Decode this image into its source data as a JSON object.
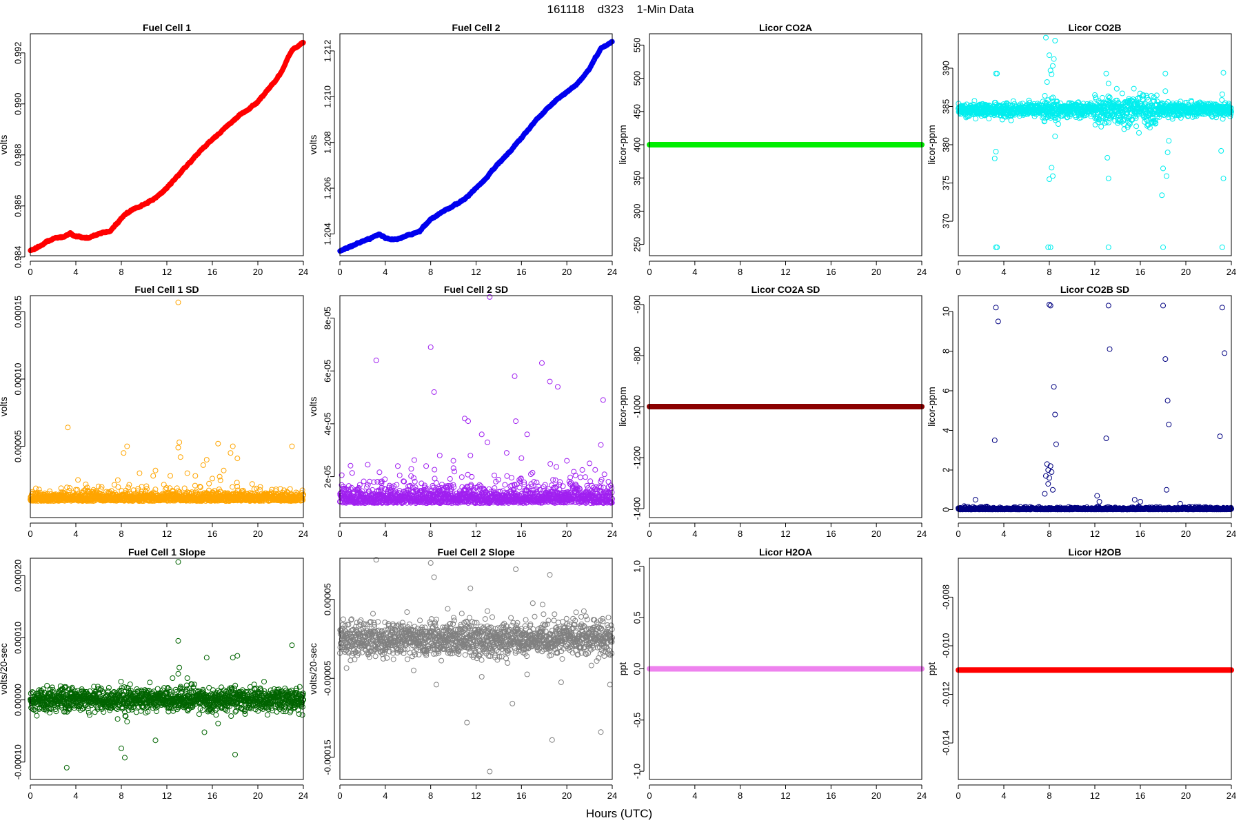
{
  "figure": {
    "title": "161118    d323    1-Min Data",
    "xlabel": "Hours (UTC)"
  },
  "chart_data": [
    {
      "id": "fc1",
      "type": "scatter",
      "title": "Fuel Cell 1",
      "ylabel": "volts",
      "color": "#ff0000",
      "xlim": [
        0,
        24
      ],
      "ylim": [
        0.98405,
        0.99275
      ],
      "xticks": [
        0,
        4,
        8,
        12,
        16,
        20,
        24
      ],
      "yticks": [
        0.984,
        0.986,
        0.988,
        0.99,
        0.992
      ],
      "ytick_labels": [
        "0.984",
        "0.986",
        "0.988",
        "0.990",
        "0.992"
      ],
      "trend": [
        [
          0,
          0.98425
        ],
        [
          1,
          0.98445
        ],
        [
          2,
          0.9847
        ],
        [
          3,
          0.9848
        ],
        [
          3.5,
          0.98495
        ],
        [
          4,
          0.9848
        ],
        [
          5,
          0.98475
        ],
        [
          6,
          0.9849
        ],
        [
          7,
          0.985
        ],
        [
          8,
          0.9855
        ],
        [
          8.5,
          0.98575
        ],
        [
          9,
          0.98585
        ],
        [
          10,
          0.98605
        ],
        [
          11,
          0.9863
        ],
        [
          12,
          0.9867
        ],
        [
          13,
          0.9872
        ],
        [
          14,
          0.9877
        ],
        [
          15,
          0.9882
        ],
        [
          16,
          0.9886
        ],
        [
          17,
          0.989
        ],
        [
          18,
          0.9894
        ],
        [
          19,
          0.98975
        ],
        [
          20,
          0.9901
        ],
        [
          21,
          0.9906
        ],
        [
          22,
          0.9912
        ],
        [
          23,
          0.9921
        ],
        [
          24,
          0.9924
        ]
      ],
      "noise": 1.5e-05,
      "marker_size": 3.2
    },
    {
      "id": "fc2",
      "type": "scatter",
      "title": "Fuel Cell 2",
      "ylabel": "volts",
      "color": "#0000ee",
      "xlim": [
        0,
        24
      ],
      "ylim": [
        1.20305,
        1.21275
      ],
      "xticks": [
        0,
        4,
        8,
        12,
        16,
        20,
        24
      ],
      "yticks": [
        1.204,
        1.206,
        1.208,
        1.21,
        1.212
      ],
      "ytick_labels": [
        "1.204",
        "1.206",
        "1.208",
        "1.210",
        "1.212"
      ],
      "trend": [
        [
          0,
          1.20325
        ],
        [
          1,
          1.20345
        ],
        [
          2,
          1.2037
        ],
        [
          3,
          1.20385
        ],
        [
          3.5,
          1.204
        ],
        [
          4,
          1.20385
        ],
        [
          5,
          1.20375
        ],
        [
          6,
          1.20395
        ],
        [
          7,
          1.2041
        ],
        [
          8,
          1.20465
        ],
        [
          9,
          1.20495
        ],
        [
          10,
          1.20525
        ],
        [
          11,
          1.2055
        ],
        [
          12,
          1.206
        ],
        [
          13,
          1.2065
        ],
        [
          14,
          1.2071
        ],
        [
          15,
          1.2076
        ],
        [
          16,
          1.2082
        ],
        [
          17,
          1.2088
        ],
        [
          18,
          1.20935
        ],
        [
          19,
          1.2098
        ],
        [
          20,
          1.2102
        ],
        [
          21,
          1.2106
        ],
        [
          22,
          1.21125
        ],
        [
          23,
          1.2121
        ],
        [
          24,
          1.2124
        ]
      ],
      "noise": 1.5e-05,
      "marker_size": 3.2
    },
    {
      "id": "co2a",
      "type": "scatter",
      "title": "Licor CO2A",
      "ylabel": "licor-ppm",
      "color": "#00ee00",
      "xlim": [
        0,
        24
      ],
      "ylim": [
        233,
        567
      ],
      "xticks": [
        0,
        4,
        8,
        12,
        16,
        20,
        24
      ],
      "yticks": [
        250,
        300,
        350,
        400,
        450,
        500,
        550
      ],
      "ytick_labels": [
        "250",
        "300",
        "350",
        "400",
        "450",
        "500",
        "550"
      ],
      "constant": 400,
      "marker_size": 3.2
    },
    {
      "id": "co2b",
      "type": "scatter",
      "title": "Licor CO2B",
      "ylabel": "licor-ppm",
      "color": "#00eeee",
      "xlim": [
        0,
        24
      ],
      "ylim": [
        365.5,
        394.5
      ],
      "xticks": [
        0,
        4,
        8,
        12,
        16,
        20,
        24
      ],
      "yticks": [
        370,
        375,
        380,
        385,
        390
      ],
      "ytick_labels": [
        "370",
        "375",
        "380",
        "385",
        "390"
      ],
      "baseline": 384.6,
      "noise": 0.45,
      "marker_size": 3.5,
      "outliers": [
        [
          3.3,
          366.6
        ],
        [
          3.4,
          366.6
        ],
        [
          3.3,
          389.3
        ],
        [
          3.4,
          389.3
        ],
        [
          3.3,
          379.1
        ],
        [
          3.2,
          378.2
        ],
        [
          7.9,
          366.6
        ],
        [
          8.1,
          366.6
        ],
        [
          7.7,
          394.0
        ],
        [
          8.0,
          391.7
        ],
        [
          8.3,
          390.3
        ],
        [
          8.2,
          389.2
        ],
        [
          7.8,
          388.2
        ],
        [
          8.5,
          393.6
        ],
        [
          8.4,
          391.2
        ],
        [
          8.1,
          389.7
        ],
        [
          8.2,
          377.0
        ],
        [
          8.3,
          375.9
        ],
        [
          8.0,
          375.5
        ],
        [
          8.5,
          381.1
        ],
        [
          13.2,
          366.6
        ],
        [
          13.0,
          389.3
        ],
        [
          13.2,
          388.0
        ],
        [
          13.1,
          378.3
        ],
        [
          13.2,
          375.6
        ],
        [
          18.0,
          366.6
        ],
        [
          18.2,
          389.3
        ],
        [
          18.2,
          387.0
        ],
        [
          18.0,
          376.9
        ],
        [
          18.3,
          375.9
        ],
        [
          17.9,
          373.4
        ],
        [
          18.5,
          380.5
        ],
        [
          18.4,
          379.0
        ],
        [
          23.2,
          366.6
        ],
        [
          23.3,
          389.4
        ],
        [
          23.1,
          379.2
        ],
        [
          23.3,
          375.6
        ],
        [
          23.2,
          386.6
        ]
      ]
    },
    {
      "id": "fc1sd",
      "type": "scatter",
      "title": "Fuel Cell 1 SD",
      "ylabel": "volts",
      "color": "#ffa500",
      "xlim": [
        0,
        24
      ],
      "ylim": [
        -3e-06,
        0.000162
      ],
      "xticks": [
        0,
        4,
        8,
        12,
        16,
        20,
        24
      ],
      "yticks": [
        5e-05,
        0.0001,
        0.00015
      ],
      "ytick_labels": [
        "0.00005",
        "0.00010",
        "0.00015"
      ],
      "base": 1.05e-05,
      "spread": 4e-06,
      "marker_size": 3.5,
      "outliers": [
        [
          3.3,
          6.4e-05
        ],
        [
          13.0,
          0.000157
        ],
        [
          13.1,
          5.3e-05
        ],
        [
          13.0,
          4.9e-05
        ],
        [
          13.2,
          4.2e-05
        ],
        [
          8.5,
          5e-05
        ],
        [
          8.2,
          4.5e-05
        ],
        [
          16.5,
          5.2e-05
        ],
        [
          17.8,
          5e-05
        ],
        [
          17.6,
          4.5e-05
        ],
        [
          18.2,
          4.1e-05
        ],
        [
          23.0,
          5e-05
        ],
        [
          15.5,
          4e-05
        ],
        [
          13.8,
          3e-05
        ],
        [
          15.2,
          3.6e-05
        ],
        [
          9.6,
          3e-05
        ],
        [
          10.8,
          2.8e-05
        ],
        [
          11.0,
          3.2e-05
        ],
        [
          14.5,
          2.8e-05
        ],
        [
          16.0,
          2.6e-05
        ],
        [
          19.5,
          2.2e-05
        ],
        [
          17.0,
          3.2e-05
        ],
        [
          12.3,
          2.8e-05
        ]
      ]
    },
    {
      "id": "fc2sd",
      "type": "scatter",
      "title": "Fuel Cell 2 SD",
      "ylabel": "volts",
      "color": "#a020f0",
      "xlim": [
        0,
        24
      ],
      "ylim": [
        4.5e-06,
        8.85e-05
      ],
      "xticks": [
        0,
        4,
        8,
        12,
        16,
        20,
        24
      ],
      "yticks": [
        2e-05,
        4e-05,
        6e-05,
        8e-05
      ],
      "ytick_labels": [
        "2e-05",
        "4e-05",
        "6e-05",
        "8e-05"
      ],
      "base": 1.1e-05,
      "spread": 3.5e-06,
      "marker_size": 3.5,
      "outliers": [
        [
          13.2,
          8.8e-05
        ],
        [
          8.0,
          6.9e-05
        ],
        [
          3.2,
          6.4e-05
        ],
        [
          17.8,
          6.3e-05
        ],
        [
          15.4,
          5.8e-05
        ],
        [
          18.5,
          5.6e-05
        ],
        [
          19.2,
          5.4e-05
        ],
        [
          8.3,
          5.2e-05
        ],
        [
          23.2,
          4.9e-05
        ],
        [
          11.0,
          4.2e-05
        ],
        [
          11.3,
          4.1e-05
        ],
        [
          12.5,
          3.6e-05
        ],
        [
          15.5,
          4.1e-05
        ],
        [
          16.5,
          3.6e-05
        ],
        [
          13.0,
          3.3e-05
        ],
        [
          23.0,
          3.2e-05
        ],
        [
          8.8,
          2.8e-05
        ],
        [
          11.5,
          2.8e-05
        ],
        [
          14.7,
          2.9e-05
        ],
        [
          20.0,
          2.6e-05
        ],
        [
          10.0,
          2.6e-05
        ],
        [
          16.0,
          2.7e-05
        ],
        [
          7.6,
          2.4e-05
        ],
        [
          22.0,
          2.5e-05
        ]
      ]
    },
    {
      "id": "co2asd",
      "type": "scatter",
      "title": "Licor CO2A SD",
      "ylabel": "licor-ppm",
      "color": "#8b0000",
      "xlim": [
        0,
        24
      ],
      "ylim": [
        -1435,
        -565
      ],
      "xticks": [
        0,
        4,
        8,
        12,
        16,
        20,
        24
      ],
      "yticks": [
        -1400,
        -1200,
        -1000,
        -800,
        -600
      ],
      "ytick_labels": [
        "-1400",
        "-1200",
        "-1000",
        "-800",
        "-600"
      ],
      "constant": -1000,
      "marker_size": 3.2
    },
    {
      "id": "co2bsd",
      "type": "scatter",
      "title": "Licor CO2B SD",
      "ylabel": "licor-ppm",
      "color": "#000080",
      "xlim": [
        0,
        24
      ],
      "ylim": [
        -0.4,
        10.8
      ],
      "xticks": [
        0,
        4,
        8,
        12,
        16,
        20,
        24
      ],
      "yticks": [
        0,
        2,
        4,
        6,
        8,
        10
      ],
      "ytick_labels": [
        "0",
        "2",
        "4",
        "6",
        "8",
        "10"
      ],
      "base": 0.02,
      "spread": 0.04,
      "marker_size": 3.5,
      "outliers": [
        [
          3.3,
          10.2
        ],
        [
          3.5,
          9.5
        ],
        [
          3.2,
          3.5
        ],
        [
          8.0,
          10.35
        ],
        [
          8.1,
          10.3
        ],
        [
          8.4,
          6.2
        ],
        [
          8.5,
          4.8
        ],
        [
          8.6,
          3.3
        ],
        [
          7.8,
          2.3
        ],
        [
          7.9,
          2.0
        ],
        [
          8.1,
          2.2
        ],
        [
          7.7,
          1.7
        ],
        [
          8.0,
          1.6
        ],
        [
          8.2,
          1.9
        ],
        [
          7.9,
          1.3
        ],
        [
          8.3,
          1.0
        ],
        [
          7.6,
          0.8
        ],
        [
          13.2,
          10.3
        ],
        [
          13.3,
          8.1
        ],
        [
          13.0,
          3.6
        ],
        [
          18.0,
          10.3
        ],
        [
          18.2,
          7.6
        ],
        [
          18.4,
          5.5
        ],
        [
          18.5,
          4.3
        ],
        [
          18.3,
          1.0
        ],
        [
          23.2,
          10.2
        ],
        [
          23.4,
          7.9
        ],
        [
          23.0,
          3.7
        ],
        [
          1.5,
          0.5
        ],
        [
          12.2,
          0.7
        ],
        [
          12.4,
          0.4
        ],
        [
          15.5,
          0.5
        ],
        [
          16.0,
          0.4
        ],
        [
          19.5,
          0.3
        ]
      ]
    },
    {
      "id": "fc1slope",
      "type": "scatter",
      "title": "Fuel Cell 1 Slope",
      "ylabel": "volts/20-sec",
      "color": "#006400",
      "xlim": [
        0,
        24
      ],
      "ylim": [
        -0.000128,
        0.000228
      ],
      "xticks": [
        0,
        4,
        8,
        12,
        16,
        20,
        24
      ],
      "yticks": [
        -0.0001,
        0,
        0.0001,
        0.0002
      ],
      "ytick_labels": [
        "-0.00010",
        "0.00000",
        "0.00010",
        "0.00020"
      ],
      "base": 5e-07,
      "spread": 9e-06,
      "marker_size": 3.5,
      "outliers": [
        [
          13.0,
          0.000222
        ],
        [
          13.0,
          9.5e-05
        ],
        [
          15.5,
          6.8e-05
        ],
        [
          17.8,
          6.8e-05
        ],
        [
          18.2,
          7.1e-05
        ],
        [
          13.1,
          5.2e-05
        ],
        [
          13.0,
          4.2e-05
        ],
        [
          23.0,
          8.8e-05
        ],
        [
          8.0,
          -7.8e-05
        ],
        [
          8.3,
          -9.3e-05
        ],
        [
          11.0,
          -6.5e-05
        ],
        [
          3.2,
          -0.000109
        ],
        [
          18.0,
          -8.8e-05
        ],
        [
          15.3,
          -5.2e-05
        ],
        [
          8.5,
          -3.5e-05
        ],
        [
          12.5,
          3.5e-05
        ],
        [
          13.8,
          3.5e-05
        ],
        [
          14.2,
          2.5e-05
        ],
        [
          16.5,
          -3.8e-05
        ],
        [
          10.5,
          2.8e-05
        ]
      ]
    },
    {
      "id": "fc2slope",
      "type": "scatter",
      "title": "Fuel Cell 2 Slope",
      "ylabel": "volts/20-sec",
      "color": "#808080",
      "xlim": [
        0,
        24
      ],
      "ylim": [
        -0.000178,
        0.000102
      ],
      "xticks": [
        0,
        4,
        8,
        12,
        16,
        20,
        24
      ],
      "yticks": [
        -0.00015,
        -5e-05,
        5e-05
      ],
      "ytick_labels": [
        "-0.00015",
        "-0.00005",
        "0.00005"
      ],
      "base": 0.0,
      "spread": 1.1e-05,
      "marker_size": 3.5,
      "outliers": [
        [
          3.2,
          0.0001
        ],
        [
          8.0,
          9.6e-05
        ],
        [
          8.3,
          7.8e-05
        ],
        [
          11.5,
          6.4e-05
        ],
        [
          15.5,
          8.8e-05
        ],
        [
          18.5,
          8.1e-05
        ],
        [
          13.2,
          -0.000168
        ],
        [
          11.2,
          -0.000106
        ],
        [
          15.2,
          -8.2e-05
        ],
        [
          18.7,
          -0.000128
        ],
        [
          23.0,
          -0.000118
        ],
        [
          23.8,
          -5.8e-05
        ],
        [
          8.5,
          -5.8e-05
        ],
        [
          12.5,
          -4.8e-05
        ],
        [
          19.5,
          -5.5e-05
        ],
        [
          16.5,
          -4.5e-05
        ],
        [
          17.0,
          4.5e-05
        ],
        [
          9.5,
          3.8e-05
        ],
        [
          13.0,
          3.5e-05
        ],
        [
          21.5,
          3.5e-05
        ],
        [
          6.5,
          -4e-05
        ]
      ]
    },
    {
      "id": "h2oa",
      "type": "scatter",
      "title": "Licor H2OA",
      "ylabel": "ppt",
      "color": "#ee82ee",
      "xlim": [
        0,
        24
      ],
      "ylim": [
        -1.08,
        1.08
      ],
      "xticks": [
        0,
        4,
        8,
        12,
        16,
        20,
        24
      ],
      "yticks": [
        -1,
        -0.5,
        0,
        0.5,
        1
      ],
      "ytick_labels": [
        "-1.0",
        "-0.5",
        "0.0",
        "0.5",
        "1.0"
      ],
      "constant": 0,
      "marker_size": 3.2
    },
    {
      "id": "h2ob",
      "type": "scatter",
      "title": "Licor H2OB",
      "ylabel": "ppt",
      "color": "#ff0000",
      "xlim": [
        0,
        24
      ],
      "ylim": [
        -0.0155,
        -0.0064
      ],
      "xticks": [
        0,
        4,
        8,
        12,
        16,
        20,
        24
      ],
      "yticks": [
        -0.014,
        -0.012,
        -0.01,
        -0.008
      ],
      "ytick_labels": [
        "-0.014",
        "-0.012",
        "-0.010",
        "-0.008"
      ],
      "constant": -0.011,
      "marker_size": 3.2
    }
  ]
}
